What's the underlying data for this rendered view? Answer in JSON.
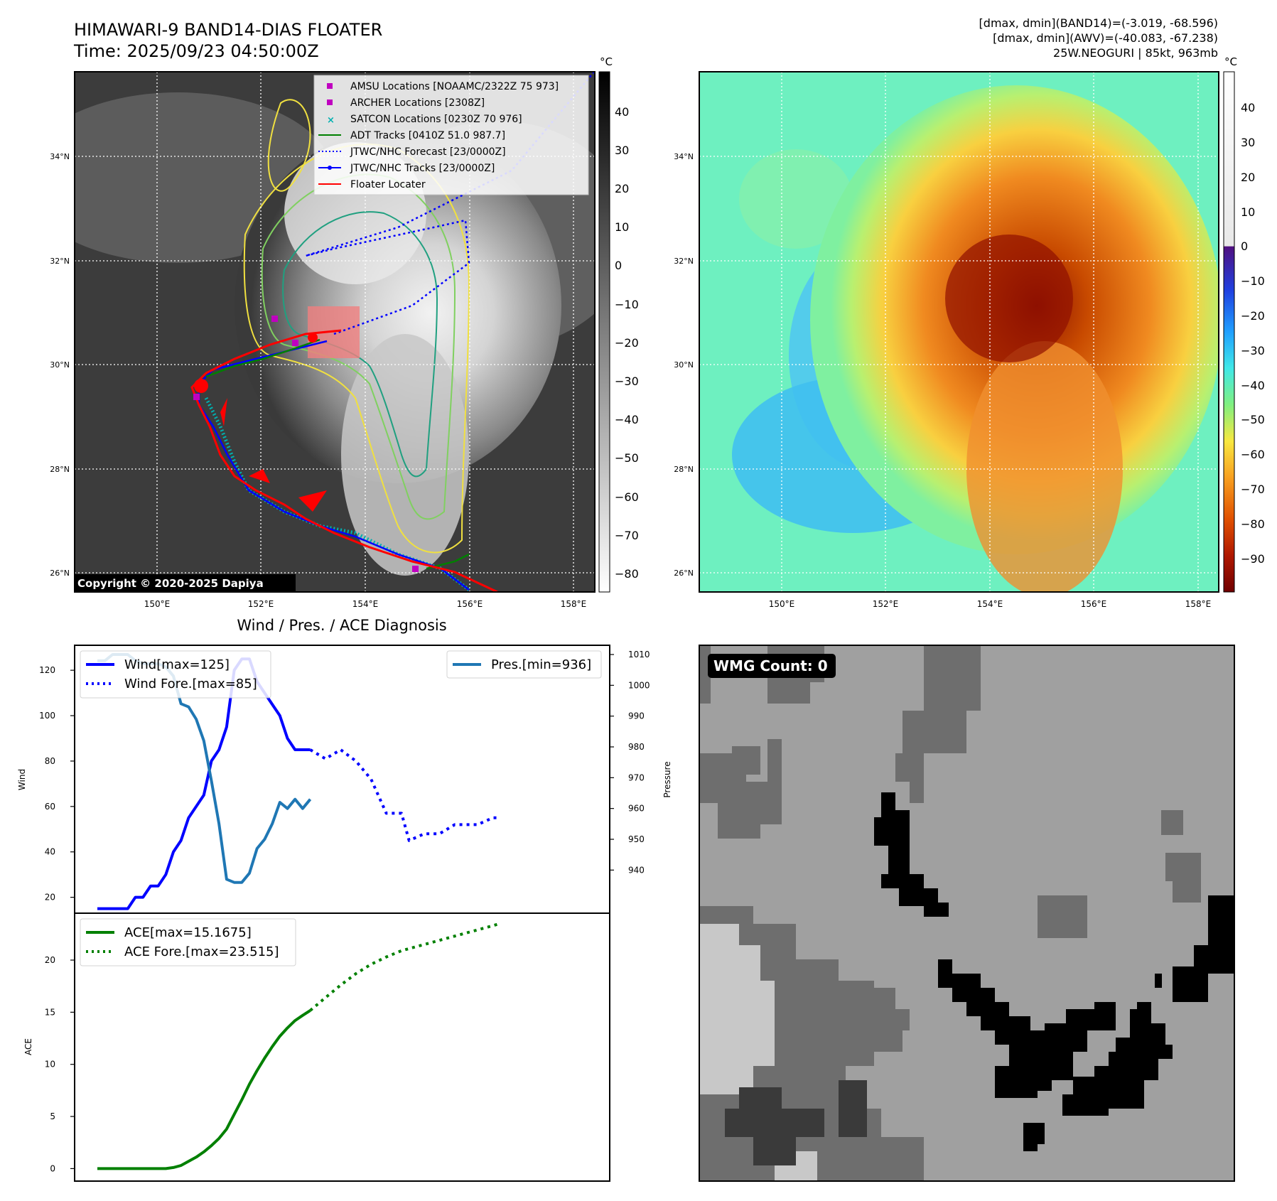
{
  "header": {
    "title_line1": "HIMAWARI-9 BAND14-DIAS FLOATER",
    "title_line2": "Time: 2025/09/23 04:50:00Z",
    "info_line1": "[dmax, dmin](BAND14)=(-3.019, -68.596)",
    "info_line2": "[dmax, dmin](AWV)=(-40.083, -67.238)",
    "info_line3": "25W.NEOGURI | 85kt, 963mb"
  },
  "map_ir": {
    "copyright": "Copyright © 2020-2025 Dapiya",
    "colorbar_unit": "°C",
    "colorbar_ticks": [
      "40",
      "30",
      "20",
      "10",
      "0",
      "−10",
      "−20",
      "−30",
      "−40",
      "−50",
      "−60",
      "−70",
      "−80"
    ],
    "legend": [
      {
        "label": "AMSU Locations [NOAAMC/2322Z 75 973]",
        "color": "#c000c0",
        "marker": "square"
      },
      {
        "label": "ARCHER Locations [2308Z]",
        "color": "#c000c0",
        "marker": "square"
      },
      {
        "label": "SATCON Locations [0230Z 70 976]",
        "color": "#00b0b0",
        "marker": "x"
      },
      {
        "label": "ADT Tracks [0410Z 51.0 987.7]",
        "color": "#008000",
        "marker": "line"
      },
      {
        "label": "JTWC/NHC Forecast [23/0000Z]",
        "color": "#0000ff",
        "marker": "dotted"
      },
      {
        "label": "JTWC/NHC Tracks [23/0000Z]",
        "color": "#0000ff",
        "marker": "line-dot"
      },
      {
        "label": "Floater Locater",
        "color": "#ff0000",
        "marker": "line"
      }
    ]
  },
  "map_color": {
    "colorbar_unit": "°C",
    "colorbar_ticks": [
      "40",
      "30",
      "20",
      "10",
      "0",
      "−10",
      "−20",
      "−30",
      "−40",
      "−50",
      "−60",
      "−70",
      "−80",
      "−90"
    ]
  },
  "map_axes": {
    "lat_labels": [
      "34°N",
      "32°N",
      "30°N",
      "28°N",
      "26°N"
    ],
    "lon_labels": [
      "150°E",
      "152°E",
      "154°E",
      "156°E",
      "158°E"
    ]
  },
  "wmg": {
    "label": "WMG Count: 0"
  },
  "chart_data": [
    {
      "type": "line",
      "title": "Wind / Pres. / ACE Diagnosis",
      "ylabel": "Wind",
      "ylabel_right": "Pressure",
      "ylim": [
        13,
        131
      ],
      "ylim_right": [
        926,
        1013
      ],
      "yticks": [
        20,
        40,
        60,
        80,
        100,
        120
      ],
      "yticks_right": [
        940,
        950,
        960,
        970,
        980,
        990,
        1000,
        1010
      ],
      "legend_left": [
        "Wind[max=125]",
        "Wind Fore.[max=85]"
      ],
      "legend_right": [
        "Pres.[min=936]"
      ],
      "series": [
        {
          "name": "Wind[max=125]",
          "color": "#0000ff",
          "style": "solid",
          "x": [
            0,
            1,
            2,
            3,
            4,
            5,
            6,
            7,
            8,
            9,
            10,
            11,
            12,
            13,
            14,
            15,
            16,
            17,
            18,
            19,
            20,
            21,
            22,
            23,
            24,
            25,
            26,
            27,
            28
          ],
          "y": [
            15,
            15,
            15,
            15,
            15,
            20,
            20,
            25,
            25,
            30,
            40,
            45,
            55,
            60,
            65,
            80,
            85,
            95,
            120,
            125,
            125,
            115,
            110,
            105,
            100,
            90,
            85,
            85,
            85
          ]
        },
        {
          "name": "Wind Fore.[max=85]",
          "color": "#0000ff",
          "style": "dotted",
          "x": [
            28,
            30,
            32,
            34,
            36,
            38,
            40,
            41,
            43,
            45,
            47,
            48,
            50,
            52,
            53
          ],
          "y": [
            85,
            81,
            85,
            80,
            72,
            57,
            57,
            45,
            48,
            48,
            52,
            52,
            52,
            55,
            55
          ]
        },
        {
          "name": "Pres.[min=936]",
          "color": "#1f77b4",
          "style": "solid",
          "axis": "right",
          "x": [
            0,
            1,
            2,
            3,
            4,
            5,
            6,
            7,
            8,
            9,
            10,
            11,
            12,
            13,
            14,
            15,
            16,
            17,
            18,
            19,
            20,
            21,
            22,
            23,
            24,
            25,
            26,
            27,
            28
          ],
          "y": [
            1008,
            1008,
            1010,
            1010,
            1010,
            1008,
            1007,
            1007,
            1007,
            1006,
            1003,
            994,
            993,
            989,
            982,
            969,
            955,
            937,
            936,
            936,
            939,
            947,
            950,
            955,
            962,
            960,
            963,
            960,
            963
          ]
        }
      ]
    },
    {
      "type": "line",
      "ylabel": "ACE",
      "ylim": [
        -1.2,
        24.5
      ],
      "yticks": [
        0,
        5,
        10,
        15,
        20
      ],
      "legend": [
        "ACE[max=15.1675]",
        "ACE Fore.[max=23.515]"
      ],
      "series": [
        {
          "name": "ACE[max=15.1675]",
          "color": "#008000",
          "style": "solid",
          "x": [
            0,
            2,
            4,
            6,
            8,
            9,
            10,
            11,
            12,
            13,
            14,
            15,
            16,
            17,
            18,
            19,
            20,
            21,
            22,
            23,
            24,
            25,
            26,
            27,
            28
          ],
          "y": [
            0,
            0,
            0,
            0,
            0,
            0,
            0.1,
            0.3,
            0.7,
            1.1,
            1.6,
            2.2,
            2.9,
            3.8,
            5.2,
            6.6,
            8.1,
            9.4,
            10.6,
            11.7,
            12.7,
            13.5,
            14.2,
            14.7,
            15.17
          ]
        },
        {
          "name": "ACE Fore.[max=23.515]",
          "color": "#008000",
          "style": "dotted",
          "x": [
            28,
            30,
            32,
            34,
            36,
            38,
            40,
            42,
            44,
            46,
            48,
            50,
            52,
            53
          ],
          "y": [
            15.17,
            16.4,
            17.6,
            18.7,
            19.6,
            20.3,
            20.9,
            21.3,
            21.7,
            22.1,
            22.5,
            22.9,
            23.3,
            23.515
          ]
        }
      ]
    }
  ]
}
